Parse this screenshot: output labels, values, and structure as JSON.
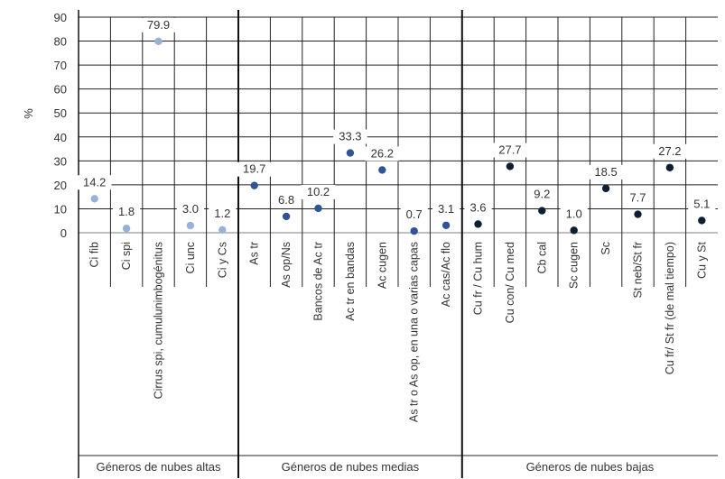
{
  "chart_data": {
    "type": "scatter",
    "title": "",
    "xlabel": "",
    "ylabel": "%",
    "ylim": [
      0,
      90
    ],
    "yticks": [
      0,
      10,
      20,
      30,
      40,
      50,
      60,
      70,
      80,
      90
    ],
    "grid": true,
    "legend": "none",
    "groups": [
      {
        "name": "Géneros de nubes altas",
        "color": "#95b3d7",
        "categories": [
          "Ci fib",
          "Ci spi",
          "Cirrus spi, cumulunimbogénitus",
          "Ci unc",
          "Ci y Cs"
        ],
        "values": [
          14.2,
          1.8,
          79.9,
          3.0,
          1.2
        ],
        "labels": [
          "14.2",
          "1.8",
          "79.9",
          "3.0",
          "1.2"
        ]
      },
      {
        "name": "Géneros de nubes medias",
        "color": "#2f5597",
        "categories": [
          "As tr",
          "As op/Ns",
          "Bancos de Ac tr",
          "Ac tr en bandas",
          "Ac cugen",
          "As tr o As op, en una o varias capas",
          "Ac cas/Ac flo"
        ],
        "values": [
          19.7,
          6.8,
          10.2,
          33.3,
          26.2,
          0.7,
          3.1
        ],
        "labels": [
          "19.7",
          "6.8",
          "10.2",
          "33.3",
          "26.2",
          "0.7",
          "3.1"
        ]
      },
      {
        "name": "Géneros de nubes bajas",
        "color": "#0d1f33",
        "categories": [
          "Cu fr / Cu hum",
          "Cu con/ Cu med",
          "Cb cal",
          "Sc cugen",
          "Sc",
          "St neb/St fr",
          "Cu fr/ St fr (de mal tiempo)",
          "Cu y St"
        ],
        "values": [
          3.6,
          27.7,
          9.2,
          1.0,
          18.5,
          7.7,
          27.2,
          5.1
        ],
        "labels": [
          "3.6",
          "27.7",
          "9.2",
          "1.0",
          "18.5",
          "7.7",
          "27.2",
          "5.1"
        ]
      }
    ]
  }
}
